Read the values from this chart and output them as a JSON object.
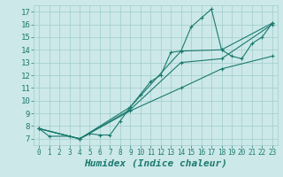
{
  "title": "",
  "xlabel": "Humidex (Indice chaleur)",
  "xlim": [
    -0.5,
    23.5
  ],
  "ylim": [
    6.5,
    17.5
  ],
  "xticks": [
    0,
    1,
    2,
    3,
    4,
    5,
    6,
    7,
    8,
    9,
    10,
    11,
    12,
    13,
    14,
    15,
    16,
    17,
    18,
    19,
    20,
    21,
    22,
    23
  ],
  "yticks": [
    7,
    8,
    9,
    10,
    11,
    12,
    13,
    14,
    15,
    16,
    17
  ],
  "bg_color": "#cce8e8",
  "line_color": "#1a7a6e",
  "lines": [
    {
      "x": [
        0,
        1,
        3,
        4,
        5,
        6,
        7,
        8,
        9,
        10,
        11,
        12,
        13,
        14,
        15,
        16,
        17,
        18,
        19,
        20,
        21,
        22,
        23
      ],
      "y": [
        7.8,
        7.2,
        7.2,
        7.0,
        7.4,
        7.3,
        7.3,
        8.4,
        9.5,
        10.5,
        11.5,
        12.0,
        13.8,
        13.9,
        15.8,
        16.5,
        17.2,
        14.0,
        13.5,
        13.3,
        14.5,
        15.0,
        16.1
      ]
    },
    {
      "x": [
        0,
        4,
        9,
        14,
        18,
        23
      ],
      "y": [
        7.8,
        7.0,
        9.5,
        13.9,
        14.0,
        16.1
      ]
    },
    {
      "x": [
        0,
        4,
        9,
        14,
        18,
        23
      ],
      "y": [
        7.8,
        7.0,
        9.3,
        13.0,
        13.3,
        16.0
      ]
    },
    {
      "x": [
        0,
        4,
        9,
        14,
        18,
        23
      ],
      "y": [
        7.8,
        7.0,
        9.2,
        11.0,
        12.5,
        13.5
      ]
    }
  ],
  "grid_color": "#a0cccc",
  "xtick_fontsize": 5.5,
  "ytick_fontsize": 6.5,
  "xlabel_fontsize": 8,
  "marker": "+"
}
